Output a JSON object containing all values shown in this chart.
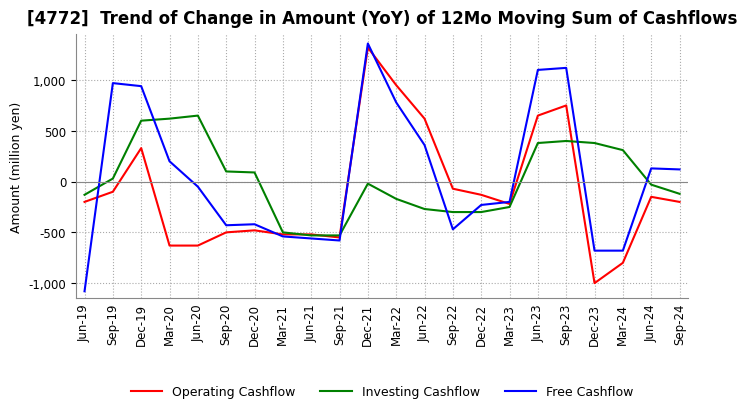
{
  "title": "[4772]  Trend of Change in Amount (YoY) of 12Mo Moving Sum of Cashflows",
  "ylabel": "Amount (million yen)",
  "ylim": [
    -1150,
    1450
  ],
  "yticks": [
    -1000,
    -500,
    0,
    500,
    1000
  ],
  "legend_labels": [
    "Operating Cashflow",
    "Investing Cashflow",
    "Free Cashflow"
  ],
  "legend_colors": [
    "#ff0000",
    "#008000",
    "#0000ff"
  ],
  "x_labels": [
    "Jun-19",
    "Sep-19",
    "Dec-19",
    "Mar-20",
    "Jun-20",
    "Sep-20",
    "Dec-20",
    "Mar-21",
    "Jun-21",
    "Sep-21",
    "Dec-21",
    "Mar-22",
    "Jun-22",
    "Sep-22",
    "Dec-22",
    "Mar-23",
    "Jun-23",
    "Sep-23",
    "Dec-23",
    "Mar-24",
    "Jun-24",
    "Sep-24"
  ],
  "operating": [
    -200,
    -100,
    330,
    -630,
    -630,
    -500,
    -480,
    -520,
    -520,
    -550,
    1320,
    950,
    620,
    -70,
    -130,
    -220,
    650,
    750,
    -1000,
    -800,
    -150,
    -200
  ],
  "investing": [
    -130,
    30,
    600,
    620,
    650,
    100,
    90,
    -500,
    -530,
    -530,
    -20,
    -170,
    -270,
    -300,
    -300,
    -250,
    380,
    400,
    380,
    310,
    -30,
    -120
  ],
  "free": [
    -1080,
    970,
    940,
    200,
    -50,
    -430,
    -420,
    -540,
    -560,
    -580,
    1360,
    780,
    360,
    -470,
    -230,
    -200,
    1100,
    1120,
    -680,
    -680,
    130,
    120
  ],
  "background_color": "#ffffff",
  "grid_color": "#aaaaaa",
  "title_fontsize": 12,
  "label_fontsize": 9,
  "tick_fontsize": 8.5
}
